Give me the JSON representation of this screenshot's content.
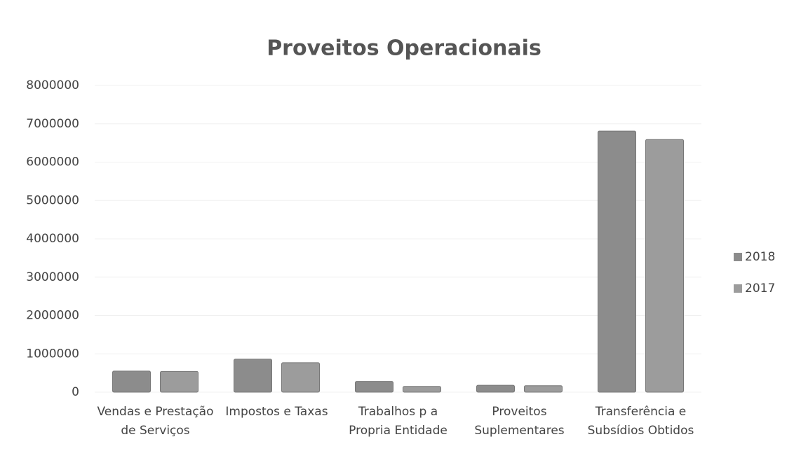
{
  "chart_data": {
    "type": "bar",
    "title": "Proveitos Operacionais",
    "categories": [
      "Vendas e Prestação de Serviços",
      "Impostos e Taxas",
      "Trabalhos p a Propria Entidade",
      "Proveitos Suplementares",
      "Transferência e Subsídios Obtidos"
    ],
    "series": [
      {
        "name": "2018",
        "color": "#8c8c8c",
        "values": [
          550000,
          860000,
          280000,
          180000,
          6810000
        ]
      },
      {
        "name": "2017",
        "color": "#9c9c9c",
        "values": [
          540000,
          770000,
          150000,
          170000,
          6590000
        ]
      }
    ],
    "ylim": [
      0,
      8000000
    ],
    "yticks": [
      0,
      1000000,
      2000000,
      3000000,
      4000000,
      5000000,
      6000000,
      7000000,
      8000000
    ],
    "grid": true,
    "legend": "right"
  }
}
